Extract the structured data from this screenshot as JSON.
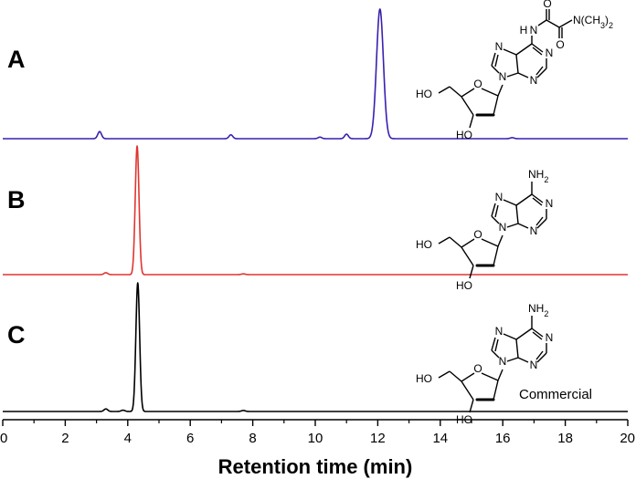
{
  "chart_data": {
    "type": "line",
    "xlabel": "Retention time (min)",
    "xlim": [
      0,
      20
    ],
    "x_ticks": [
      "0",
      "2",
      "4",
      "6",
      "8",
      "10",
      "12",
      "14",
      "16",
      "18",
      "20"
    ],
    "series": [
      {
        "name": "A",
        "color": "#3a1fb0",
        "peaks": [
          {
            "x": 3.1,
            "y": 0.055
          },
          {
            "x": 7.3,
            "y": 0.03
          },
          {
            "x": 10.15,
            "y": 0.012
          },
          {
            "x": 11.0,
            "y": 0.035
          },
          {
            "x": 12.07,
            "y": 1.0
          },
          {
            "x": 16.3,
            "y": 0.008
          }
        ],
        "structure_labels": {
          "amide_nh": "H",
          "amide_n": "N",
          "carbonyl_o1": "O",
          "carbonyl_o2": "O",
          "dimethylamino": "N(CH3)2",
          "n_atom": "N",
          "ho_5": "HO",
          "ho_3": "HO",
          "ring_o": "O"
        }
      },
      {
        "name": "B",
        "color": "#e0352f",
        "peaks": [
          {
            "x": 3.3,
            "y": 0.015
          },
          {
            "x": 4.3,
            "y": 1.0
          },
          {
            "x": 7.7,
            "y": 0.006
          }
        ],
        "structure_labels": {
          "amine": "NH2",
          "n_atom": "N",
          "ho_5": "HO",
          "ho_3": "HO",
          "ring_o": "O"
        }
      },
      {
        "name": "C",
        "color": "#000000",
        "peaks": [
          {
            "x": 3.3,
            "y": 0.02
          },
          {
            "x": 3.85,
            "y": 0.01
          },
          {
            "x": 4.32,
            "y": 1.0
          },
          {
            "x": 7.7,
            "y": 0.008
          }
        ],
        "annotation": "Commercial",
        "structure_labels": {
          "amine": "NH2",
          "n_atom": "N",
          "ho_5": "HO",
          "ho_3": "HO",
          "ring_o": "O"
        }
      }
    ],
    "grid": false,
    "legend": "none"
  }
}
